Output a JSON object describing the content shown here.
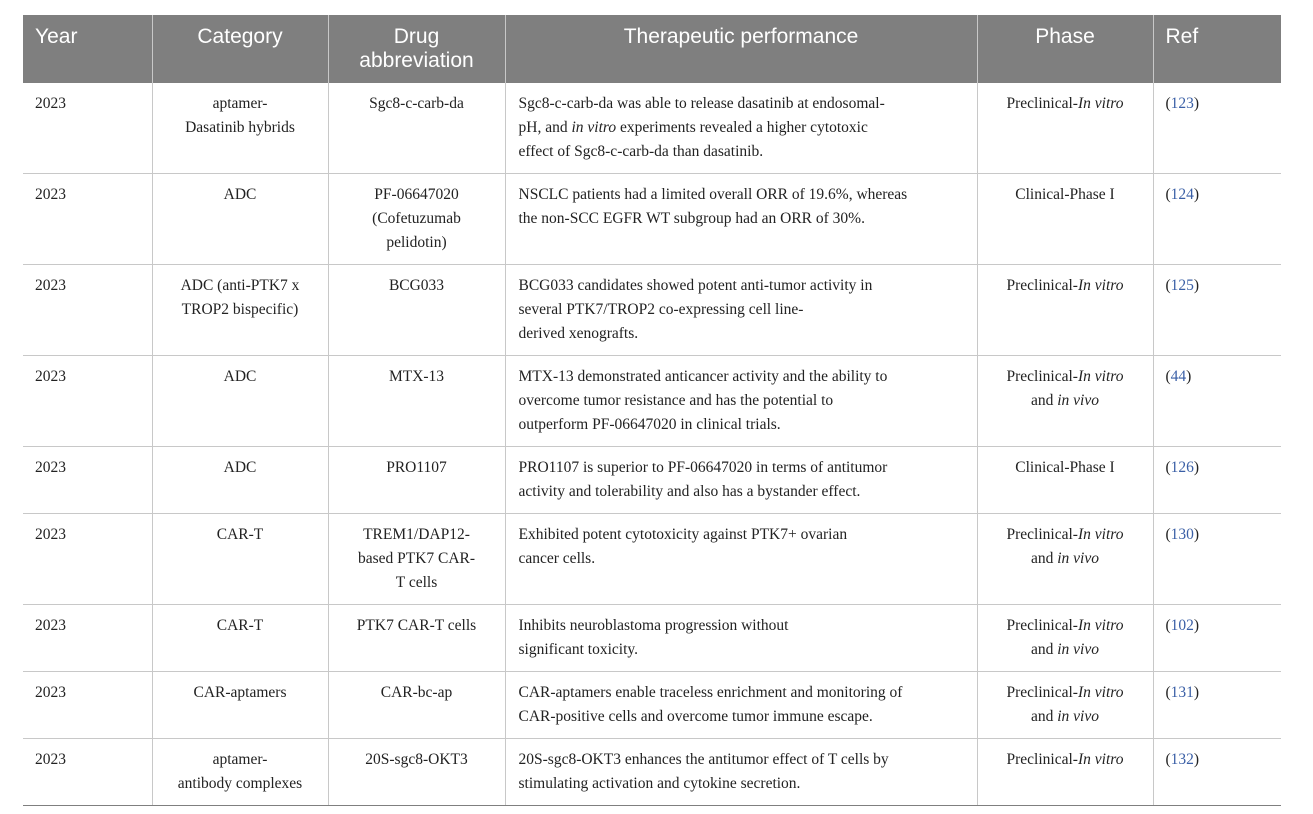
{
  "table": {
    "headers": {
      "year": "Year",
      "category": "Category",
      "drug_line1": "Drug",
      "drug_line2": "abbreviation",
      "performance": "Therapeutic performance",
      "phase": "Phase",
      "ref": "Ref"
    },
    "rows": [
      {
        "year": "2023",
        "category": [
          "aptamer-",
          "Dasatinib hybrids"
        ],
        "drug": [
          "Sgc8-c-carb-da"
        ],
        "performance": [
          [
            "Sgc8-c-carb-da was able to release dasatinib at endosomal-"
          ],
          [
            "pH, and ",
            "in vitro",
            " experiments revealed a higher cytotoxic"
          ],
          [
            "effect of Sgc8-c-carb-da than dasatinib."
          ]
        ],
        "phase": [
          [
            "Preclinical-",
            "In vitro"
          ]
        ],
        "ref": "123"
      },
      {
        "year": "2023",
        "category": [
          "ADC"
        ],
        "drug": [
          "PF-06647020",
          "(Cofetuzumab",
          "pelidotin)"
        ],
        "performance": [
          [
            "NSCLC patients had a limited overall ORR of 19.6%, whereas"
          ],
          [
            "the non-SCC EGFR WT subgroup had an ORR of 30%."
          ]
        ],
        "phase": [
          [
            "Clinical-Phase I"
          ]
        ],
        "ref": "124"
      },
      {
        "year": "2023",
        "category": [
          "ADC (anti-PTK7 x",
          "TROP2 bispecific)"
        ],
        "drug": [
          "BCG033"
        ],
        "performance": [
          [
            "BCG033 candidates showed potent anti-tumor activity in"
          ],
          [
            "several PTK7/TROP2 co-expressing cell line-"
          ],
          [
            "derived xenografts."
          ]
        ],
        "phase": [
          [
            "Preclinical-",
            "In vitro"
          ]
        ],
        "ref": "125"
      },
      {
        "year": "2023",
        "category": [
          "ADC"
        ],
        "drug": [
          "MTX-13"
        ],
        "performance": [
          [
            "MTX-13 demonstrated anticancer activity and the ability to"
          ],
          [
            "overcome tumor resistance and has the potential to"
          ],
          [
            "outperform PF-06647020 in clinical trials."
          ]
        ],
        "phase": [
          [
            "Preclinical-",
            "In vitro"
          ],
          [
            "and ",
            "in vivo"
          ]
        ],
        "ref": "44"
      },
      {
        "year": "2023",
        "category": [
          "ADC"
        ],
        "drug": [
          "PRO1107"
        ],
        "performance": [
          [
            "PRO1107 is superior to PF-06647020 in terms of antitumor"
          ],
          [
            "activity and tolerability and also has a bystander effect."
          ]
        ],
        "phase": [
          [
            "Clinical-Phase I"
          ]
        ],
        "ref": "126"
      },
      {
        "year": "2023",
        "category": [
          "CAR-T"
        ],
        "drug": [
          "TREM1/DAP12-",
          "based PTK7 CAR-",
          "T cells"
        ],
        "performance": [
          [
            "Exhibited potent cytotoxicity against PTK7+ ovarian"
          ],
          [
            "cancer cells."
          ]
        ],
        "phase": [
          [
            "Preclinical-",
            "In vitro"
          ],
          [
            "and ",
            "in vivo"
          ]
        ],
        "ref": "130"
      },
      {
        "year": "2023",
        "category": [
          "CAR-T"
        ],
        "drug": [
          "PTK7 CAR-T cells"
        ],
        "performance": [
          [
            "Inhibits neuroblastoma progression without"
          ],
          [
            "significant toxicity."
          ]
        ],
        "phase": [
          [
            "Preclinical-",
            "In vitro"
          ],
          [
            "and ",
            "in vivo"
          ]
        ],
        "ref": "102"
      },
      {
        "year": "2023",
        "category": [
          "CAR-aptamers"
        ],
        "drug": [
          "CAR-bc-ap"
        ],
        "performance": [
          [
            "CAR-aptamers enable traceless enrichment and monitoring of"
          ],
          [
            "CAR-positive cells and overcome tumor immune escape."
          ]
        ],
        "phase": [
          [
            "Preclinical-",
            "In vitro"
          ],
          [
            "and ",
            "in vivo"
          ]
        ],
        "ref": "131"
      },
      {
        "year": "2023",
        "category": [
          "aptamer-",
          "antibody complexes"
        ],
        "drug": [
          "20S-sgc8-OKT3"
        ],
        "performance": [
          [
            "20S-sgc8-OKT3 enhances the antitumor effect of T cells by"
          ],
          [
            "stimulating activation and cytokine secretion."
          ]
        ],
        "phase": [
          [
            "Preclinical-",
            "In vitro"
          ]
        ],
        "ref": "132"
      }
    ]
  }
}
